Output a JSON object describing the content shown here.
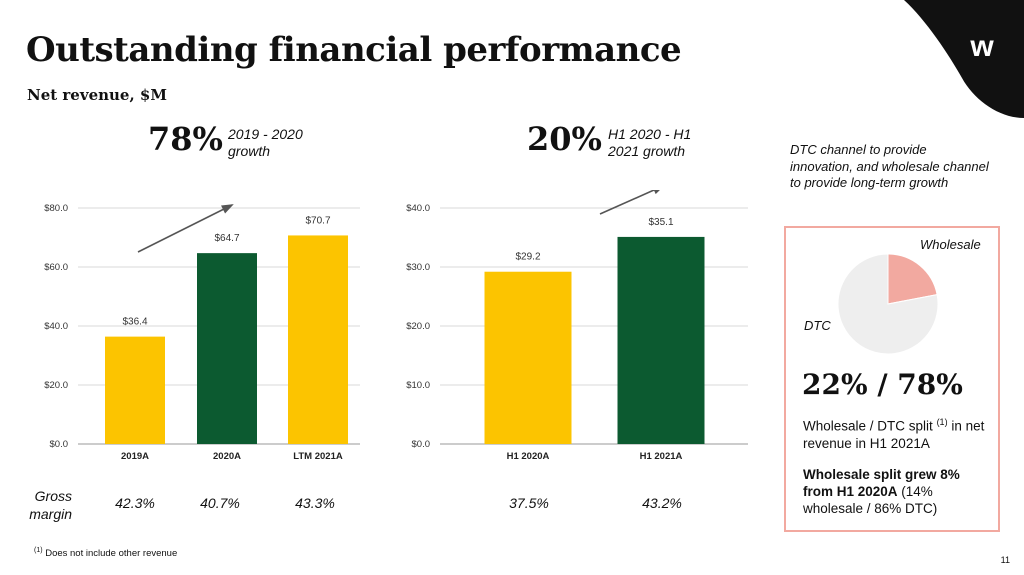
{
  "title": "Outstanding financial performance",
  "subtitle": "Net revenue, $M",
  "logo": "w",
  "growth_left": {
    "pct": "78%",
    "label_line1": "2019 - 2020",
    "label_line2": "growth"
  },
  "growth_right": {
    "pct": "20%",
    "label_line1": "H1 2020 - H1",
    "label_line2": "2021 growth"
  },
  "colors": {
    "yellow": "#fcc400",
    "green": "#0c5a30",
    "pink": "#f2a9a0",
    "pie_light": "#eeeeee",
    "corner": "#111111"
  },
  "chart_data": [
    {
      "type": "bar",
      "title": "Net revenue, $M",
      "categories": [
        "2019A",
        "2020A",
        "LTM 2021A"
      ],
      "values": [
        36.4,
        64.7,
        70.7
      ],
      "value_labels": [
        "$36.4",
        "$64.7",
        "$70.7"
      ],
      "bar_colors": [
        "#fcc400",
        "#0c5a30",
        "#fcc400"
      ],
      "yticks": [
        0,
        20,
        40,
        60,
        80
      ],
      "ytick_labels": [
        "$0.0",
        "$20.0",
        "$40.0",
        "$60.0",
        "$80.0"
      ],
      "ylim": [
        0,
        80
      ]
    },
    {
      "type": "bar",
      "title": "Net revenue, $M",
      "categories": [
        "H1 2020A",
        "H1 2021A"
      ],
      "values": [
        29.2,
        35.1
      ],
      "value_labels": [
        "$29.2",
        "$35.1"
      ],
      "bar_colors": [
        "#fcc400",
        "#0c5a30"
      ],
      "yticks": [
        0,
        10,
        20,
        30,
        40
      ],
      "ytick_labels": [
        "$0.0",
        "$10.0",
        "$20.0",
        "$30.0",
        "$40.0"
      ],
      "ylim": [
        0,
        40
      ]
    },
    {
      "type": "pie",
      "labels": [
        "Wholesale",
        "DTC"
      ],
      "values": [
        22,
        78
      ],
      "colors": [
        "#f2a9a0",
        "#eeeeee"
      ]
    }
  ],
  "gross_margin": {
    "label_line1": "Gross",
    "label_line2": "margin",
    "values": [
      "42.3%",
      "40.7%",
      "43.3%",
      "37.5%",
      "43.2%"
    ]
  },
  "dtc_text": "DTC channel to provide innovation, and wholesale channel to provide long-term growth",
  "split_box": {
    "wholesale_label": "Wholesale",
    "dtc_label": "DTC",
    "big": "22% / 78%",
    "desc_pre": "Wholesale / DTC split",
    "desc_sup": "(1)",
    "desc_post": " in net revenue in H1 2021A",
    "grew_bold": "Wholesale split grew 8% from H1 2020A",
    "grew_rest": " (14% wholesale / 86% DTC)"
  },
  "footnote": {
    "sup": "(1)",
    "text": " Does not include other revenue"
  },
  "page_number": "11"
}
